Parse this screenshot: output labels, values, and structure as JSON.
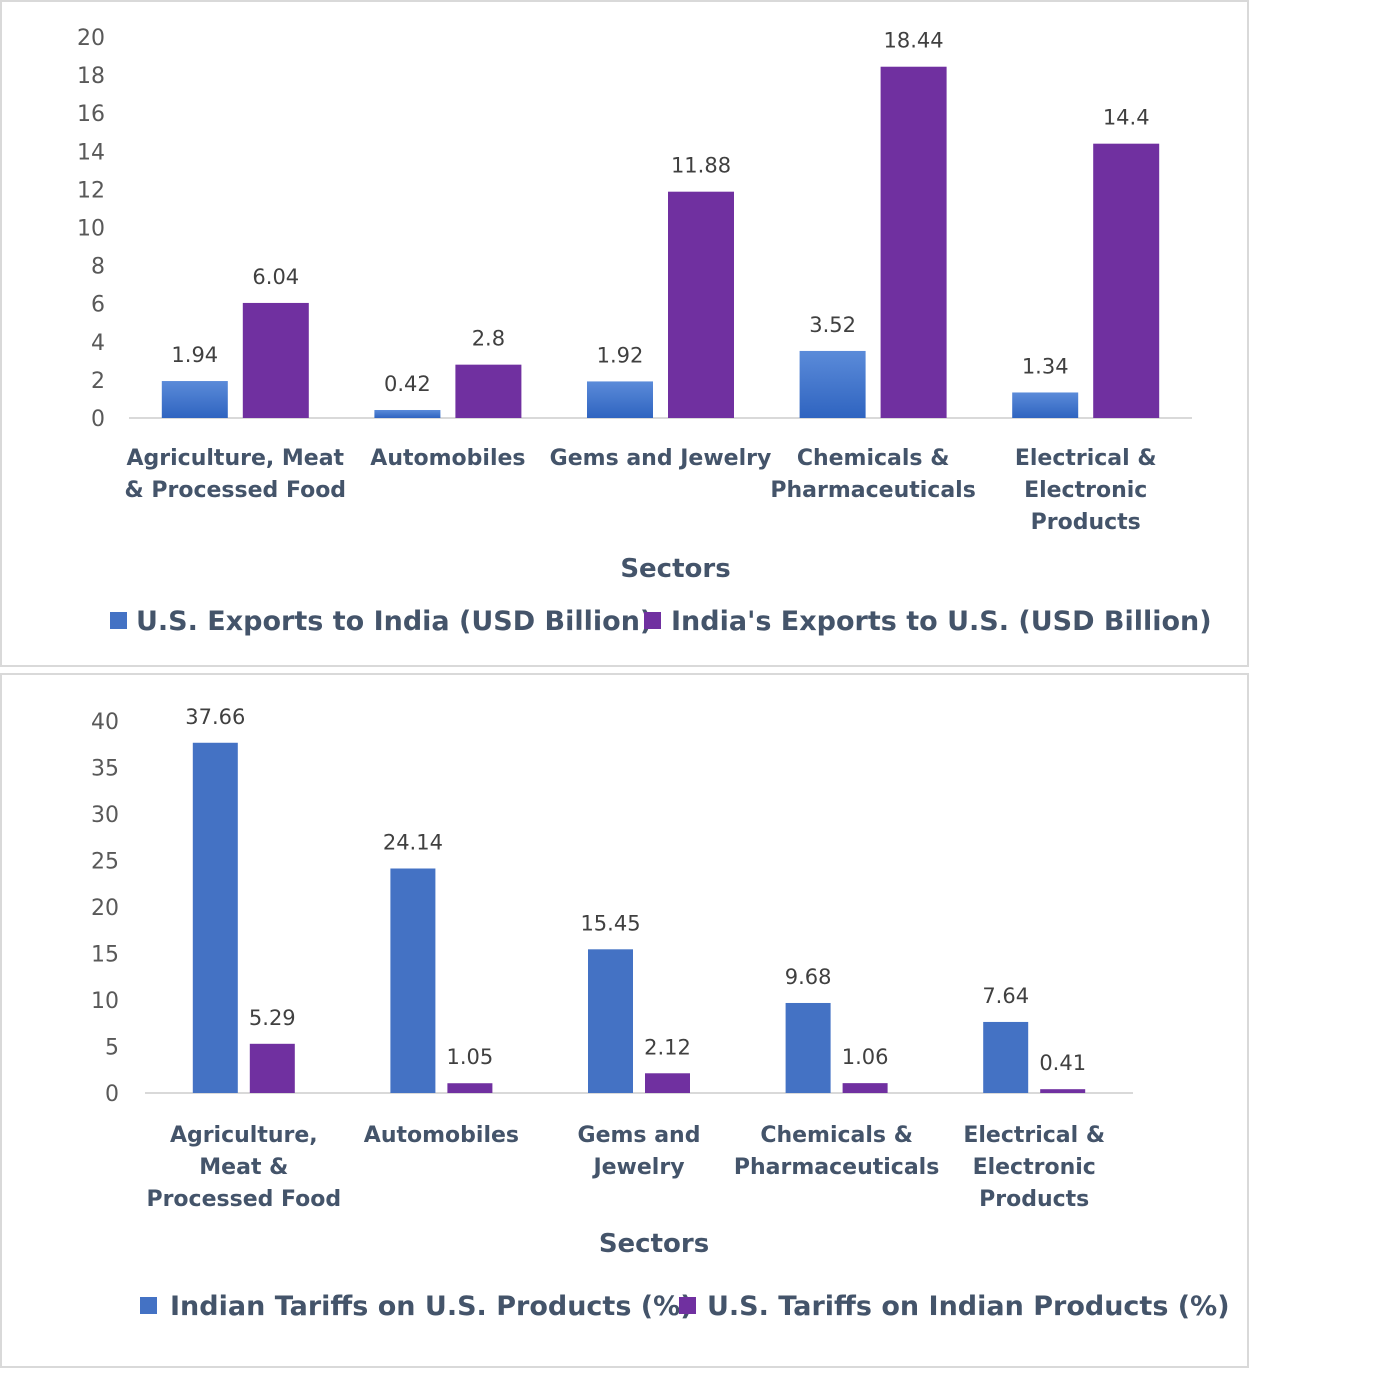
{
  "chart_data": [
    {
      "type": "bar",
      "title": "",
      "xlabel": "Sectors",
      "ylabel": "",
      "ylim": [
        0,
        20
      ],
      "yticks": [
        0,
        2,
        4,
        6,
        8,
        10,
        12,
        14,
        16,
        18,
        20
      ],
      "categories": [
        [
          "Agriculture, Meat",
          "& Processed Food"
        ],
        [
          "Automobiles"
        ],
        [
          "Gems and Jewelry"
        ],
        [
          "Chemicals &",
          "Pharmaceuticals"
        ],
        [
          "Electrical &",
          "Electronic",
          "Products"
        ]
      ],
      "series": [
        {
          "name": "U.S. Exports to India (USD Billion)",
          "color": "#4472c4",
          "gradient": true,
          "values": [
            1.94,
            0.42,
            1.92,
            3.52,
            1.34
          ]
        },
        {
          "name": "India's Exports to U.S. (USD Billion)",
          "color": "#7030a0",
          "values": [
            6.04,
            2.8,
            11.88,
            18.44,
            14.4
          ]
        }
      ],
      "data_labels": true,
      "legend": "bottom",
      "grid": false
    },
    {
      "type": "bar",
      "title": "",
      "xlabel": "Sectors",
      "ylabel": "",
      "ylim": [
        0,
        40
      ],
      "yticks": [
        0,
        5,
        10,
        15,
        20,
        25,
        30,
        35,
        40
      ],
      "categories": [
        [
          "Agriculture,",
          "Meat &",
          "Processed Food"
        ],
        [
          "Automobiles"
        ],
        [
          "Gems and",
          "Jewelry"
        ],
        [
          "Chemicals &",
          "Pharmaceuticals"
        ],
        [
          "Electrical &",
          "Electronic",
          "Products"
        ]
      ],
      "series": [
        {
          "name": "Indian Tariffs on U.S. Products (%)",
          "color": "#4472c4",
          "values": [
            37.66,
            24.14,
            15.45,
            9.68,
            7.64
          ]
        },
        {
          "name": "U.S. Tariffs on Indian Products (%)",
          "color": "#7030a0",
          "values": [
            5.29,
            1.05,
            2.12,
            1.06,
            0.41
          ]
        }
      ],
      "data_labels": true,
      "legend": "bottom",
      "grid": false
    }
  ]
}
